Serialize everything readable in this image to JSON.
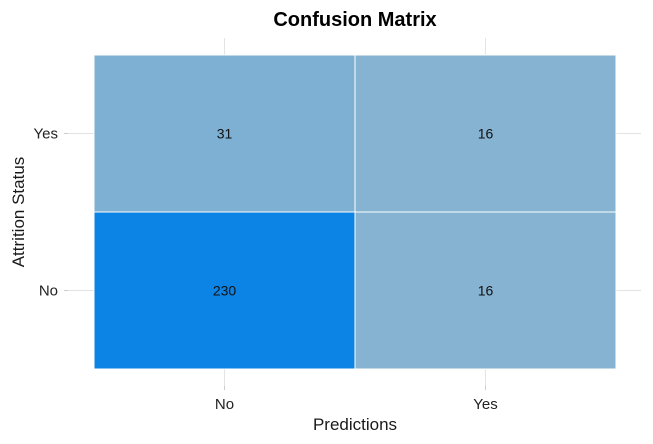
{
  "chart_data": {
    "type": "heatmap",
    "title": "Confusion Matrix",
    "xlabel": "Predictions",
    "ylabel": "Attrition Status",
    "x_categories": [
      "No",
      "Yes"
    ],
    "y_categories": [
      "No",
      "Yes"
    ],
    "cells": [
      {
        "x": "No",
        "y": "Yes",
        "value": 31
      },
      {
        "x": "Yes",
        "y": "Yes",
        "value": 16
      },
      {
        "x": "No",
        "y": "No",
        "value": 230
      },
      {
        "x": "Yes",
        "y": "No",
        "value": 16
      }
    ],
    "color_low": "#86b3d2",
    "color_high": "#0b84e6",
    "grid": true,
    "legend": "none"
  }
}
